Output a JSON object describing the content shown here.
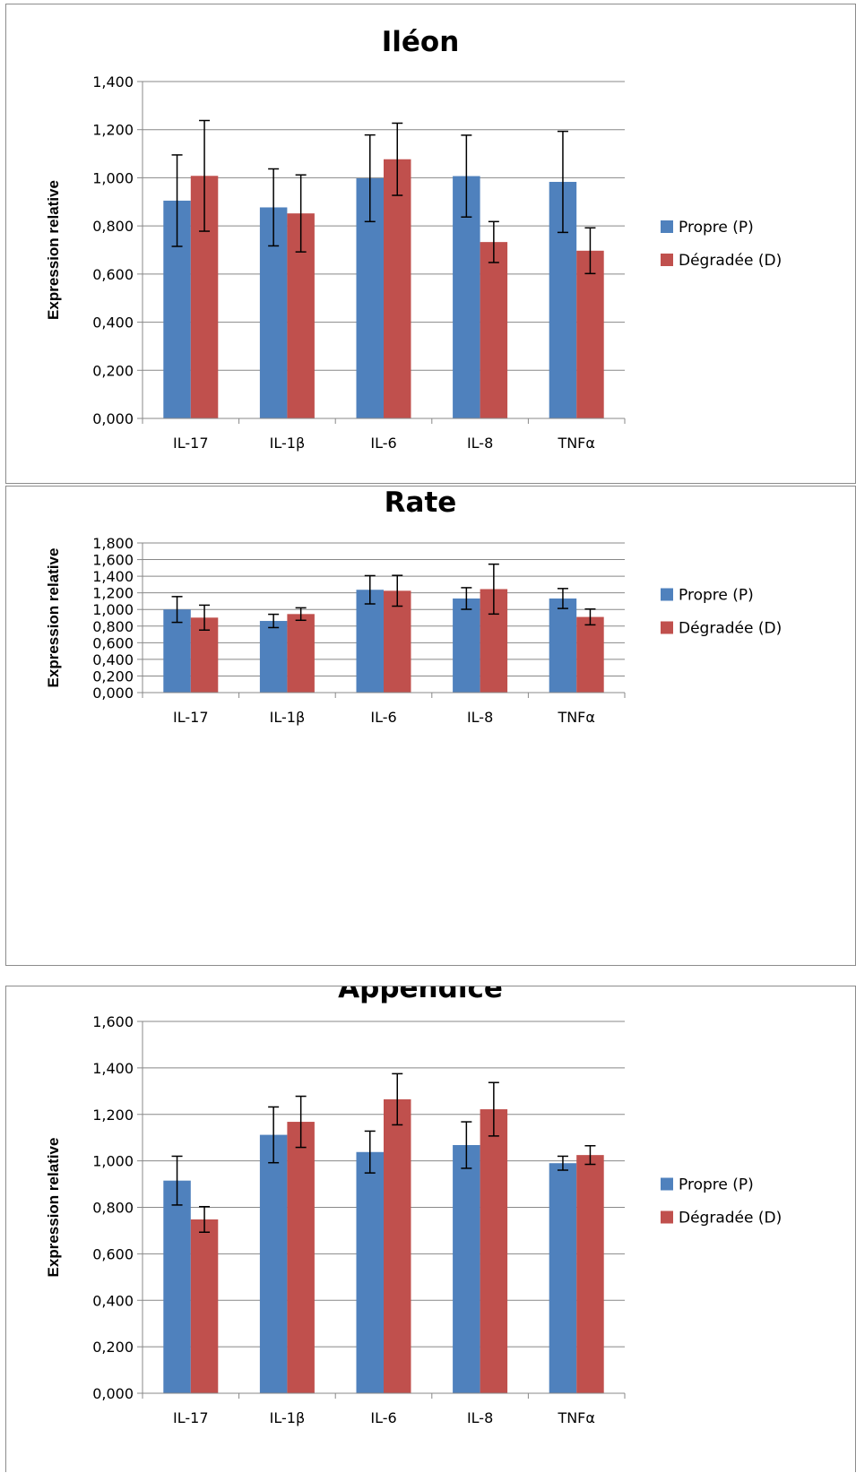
{
  "colors": {
    "propre": "#4f81bd",
    "degradee": "#c0504d",
    "grid": "#888888",
    "error_bar": "#000000"
  },
  "chart_data": [
    {
      "type": "bar",
      "title": "Iléon",
      "ylabel": "Expression relative",
      "ylim": [
        0,
        1.4
      ],
      "yticks": [
        "0,000",
        "0,200",
        "0,400",
        "0,600",
        "0,800",
        "1,000",
        "1,200",
        "1,400"
      ],
      "categories": [
        "IL-17",
        "IL-1β",
        "IL-6",
        "IL-8",
        "TNFα"
      ],
      "grid": true,
      "legend_position": "right",
      "series": [
        {
          "name": "Propre (P)",
          "values": [
            0.905,
            0.877,
            0.998,
            1.007,
            0.983
          ],
          "errors": [
            0.19,
            0.16,
            0.18,
            0.17,
            0.21
          ]
        },
        {
          "name": "Dégradée (D)",
          "values": [
            1.008,
            0.852,
            1.077,
            0.733,
            0.697
          ],
          "errors": [
            0.23,
            0.16,
            0.15,
            0.085,
            0.095
          ]
        }
      ]
    },
    {
      "type": "bar",
      "title": "Rate",
      "ylabel": "Expression relative",
      "ylim": [
        0,
        1.8
      ],
      "yticks": [
        "0,000",
        "0,200",
        "0,400",
        "0,600",
        "0,800",
        "1,000",
        "1,200",
        "1,400",
        "1,600",
        "1,800"
      ],
      "categories": [
        "IL-17",
        "IL-1β",
        "IL-6",
        "IL-8",
        "TNFα"
      ],
      "grid": true,
      "legend_position": "right",
      "series": [
        {
          "name": "Propre (P)",
          "values": [
            1.0,
            0.862,
            1.237,
            1.132,
            1.132
          ],
          "errors": [
            0.155,
            0.08,
            0.17,
            0.13,
            0.12
          ]
        },
        {
          "name": "Dégradée (D)",
          "values": [
            0.902,
            0.945,
            1.225,
            1.245,
            0.91
          ],
          "errors": [
            0.15,
            0.075,
            0.185,
            0.3,
            0.095
          ]
        }
      ]
    },
    {
      "type": "bar",
      "title": "Appendice",
      "ylabel": "Expression relative",
      "ylim": [
        0,
        1.6
      ],
      "yticks": [
        "0,000",
        "0,200",
        "0,400",
        "0,600",
        "0,800",
        "1,000",
        "1,200",
        "1,400",
        "1,600"
      ],
      "categories": [
        "IL-17",
        "IL-1β",
        "IL-6",
        "IL-8",
        "TNFα"
      ],
      "grid": true,
      "legend_position": "right",
      "series": [
        {
          "name": "Propre (P)",
          "values": [
            0.915,
            1.112,
            1.038,
            1.068,
            0.99
          ],
          "errors": [
            0.105,
            0.12,
            0.09,
            0.1,
            0.03
          ]
        },
        {
          "name": "Dégradée (D)",
          "values": [
            0.748,
            1.168,
            1.265,
            1.222,
            1.025
          ],
          "errors": [
            0.055,
            0.11,
            0.11,
            0.115,
            0.04
          ]
        }
      ]
    }
  ]
}
